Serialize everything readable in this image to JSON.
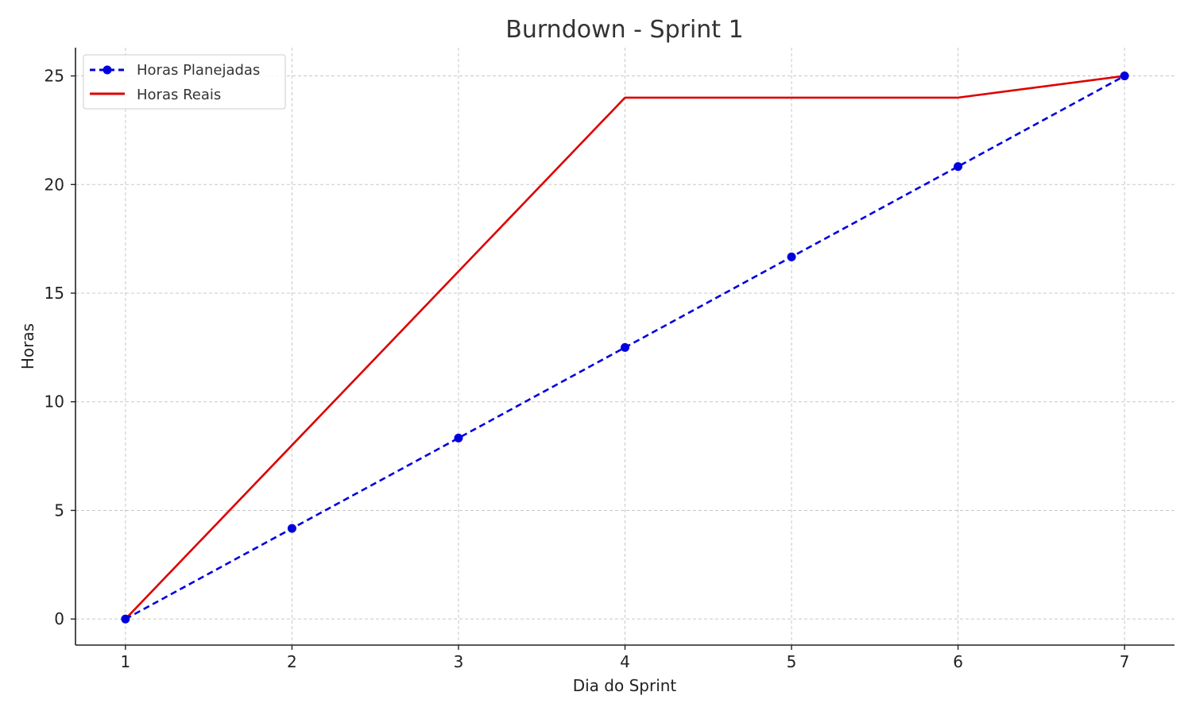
{
  "chart_data": {
    "type": "line",
    "title": "Burndown - Sprint 1",
    "xlabel": "Dia do Sprint",
    "ylabel": "Horas",
    "x": [
      1,
      2,
      3,
      4,
      5,
      6,
      7
    ],
    "xlim": [
      0.7,
      7.3
    ],
    "ylim": [
      -1.2,
      26.3
    ],
    "xticks": [
      1,
      2,
      3,
      4,
      5,
      6,
      7
    ],
    "yticks": [
      0,
      5,
      10,
      15,
      20,
      25
    ],
    "grid": true,
    "legend_position": "top-left",
    "series": [
      {
        "name": "Horas Planejadas",
        "values": [
          0,
          4.17,
          8.33,
          12.5,
          16.67,
          20.83,
          25
        ],
        "color": "#0000dd",
        "style": "dashed",
        "markers": true
      },
      {
        "name": "Horas Reais",
        "values": [
          0,
          8,
          16,
          24,
          24,
          24,
          25
        ],
        "color": "#dd0000",
        "style": "solid",
        "markers": false
      }
    ]
  }
}
